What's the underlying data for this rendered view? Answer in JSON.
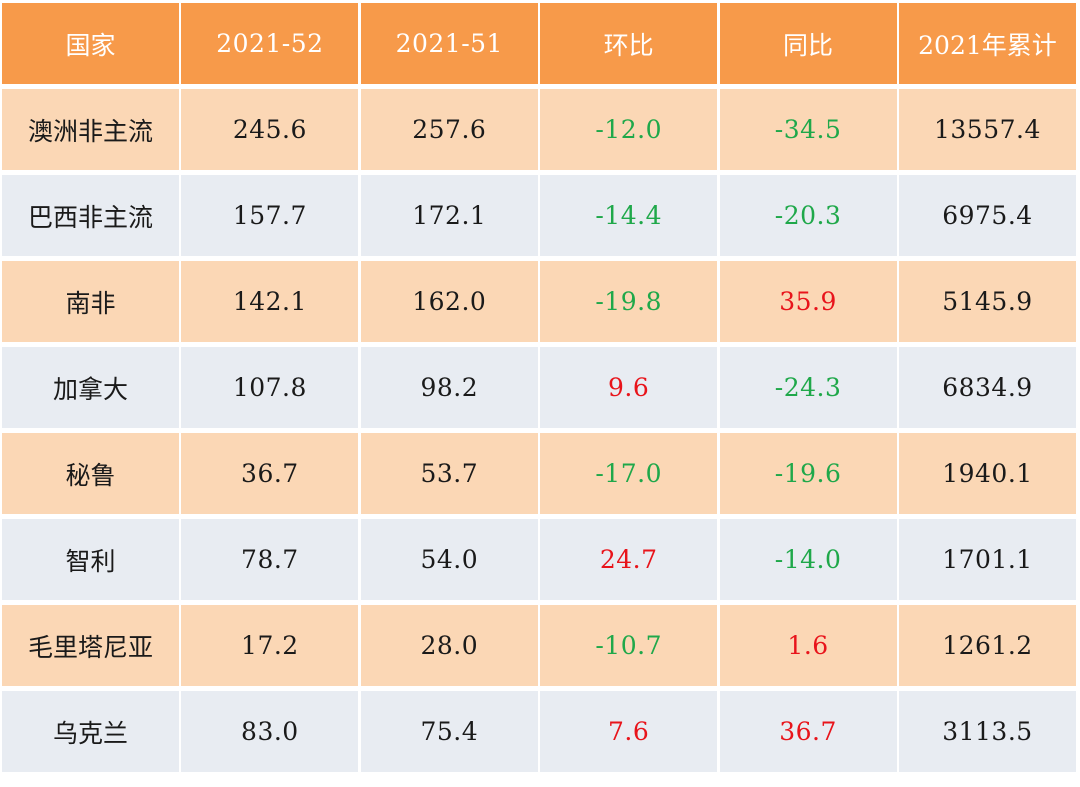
{
  "headers": [
    "国家",
    "2021-52",
    "2021-51",
    "环比",
    "同比",
    "2021年累计"
  ],
  "rows": [
    {
      "country": "澳洲非主流",
      "w52": "245.6",
      "w51": "257.6",
      "mom": "-12.0",
      "mom_sign": "neg",
      "yoy": "-34.5",
      "yoy_sign": "neg",
      "ytd": "13557.4"
    },
    {
      "country": "巴西非主流",
      "w52": "157.7",
      "w51": "172.1",
      "mom": "-14.4",
      "mom_sign": "neg",
      "yoy": "-20.3",
      "yoy_sign": "neg",
      "ytd": "6975.4"
    },
    {
      "country": "南非",
      "w52": "142.1",
      "w51": "162.0",
      "mom": "-19.8",
      "mom_sign": "neg",
      "yoy": "35.9",
      "yoy_sign": "pos",
      "ytd": "5145.9"
    },
    {
      "country": "加拿大",
      "w52": "107.8",
      "w51": "98.2",
      "mom": "9.6",
      "mom_sign": "pos",
      "yoy": "-24.3",
      "yoy_sign": "neg",
      "ytd": "6834.9"
    },
    {
      "country": "秘鲁",
      "w52": "36.7",
      "w51": "53.7",
      "mom": "-17.0",
      "mom_sign": "neg",
      "yoy": "-19.6",
      "yoy_sign": "neg",
      "ytd": "1940.1"
    },
    {
      "country": "智利",
      "w52": "78.7",
      "w51": "54.0",
      "mom": "24.7",
      "mom_sign": "pos",
      "yoy": "-14.0",
      "yoy_sign": "neg",
      "ytd": "1701.1"
    },
    {
      "country": "毛里塔尼亚",
      "w52": "17.2",
      "w51": "28.0",
      "mom": "-10.7",
      "mom_sign": "neg",
      "yoy": "1.6",
      "yoy_sign": "pos",
      "ytd": "1261.2"
    },
    {
      "country": "乌克兰",
      "w52": "83.0",
      "w51": "75.4",
      "mom": "7.6",
      "mom_sign": "pos",
      "yoy": "36.7",
      "yoy_sign": "pos",
      "ytd": "3113.5"
    }
  ],
  "colors": {
    "header_bg": "#f79a4a",
    "row_odd_bg": "#fbd7b5",
    "row_even_bg": "#e8ecf2",
    "negative": "#1fa84a",
    "positive": "#e8141b"
  }
}
